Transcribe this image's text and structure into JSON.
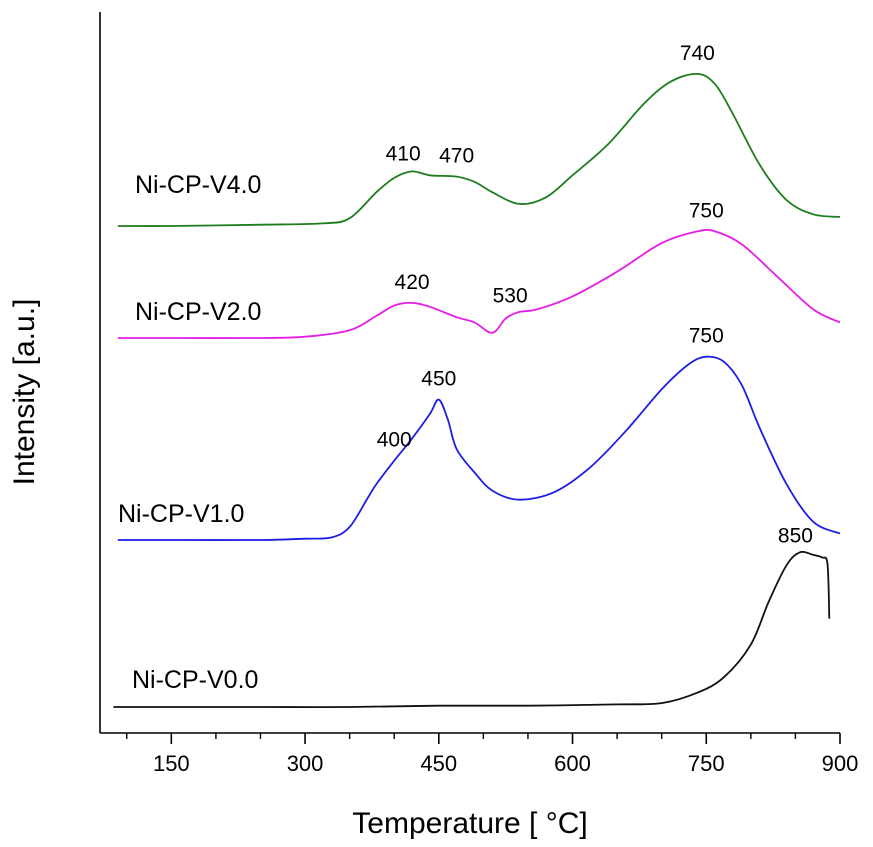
{
  "chart_data": {
    "type": "line",
    "xlabel": "Temperature [ °C]",
    "ylabel": "Intensity [a.u.]",
    "xlim": [
      70,
      900
    ],
    "x_ticks": [
      150,
      300,
      450,
      600,
      750,
      900
    ],
    "x_minor_step": 50,
    "y_ticks": "none",
    "series": [
      {
        "name": "Ni-CP-V4.0",
        "color": "#1e7d1e",
        "x": [
          90,
          150,
          250,
          320,
          350,
          380,
          400,
          420,
          440,
          470,
          490,
          510,
          540,
          570,
          600,
          640,
          680,
          710,
          740,
          760,
          780,
          810,
          840,
          870,
          900
        ],
        "y": [
          0.0,
          0.0,
          0.01,
          0.02,
          0.06,
          0.26,
          0.37,
          0.42,
          0.39,
          0.38,
          0.34,
          0.26,
          0.17,
          0.22,
          0.39,
          0.63,
          0.94,
          1.11,
          1.17,
          1.09,
          0.86,
          0.47,
          0.2,
          0.09,
          0.07
        ],
        "peaks": [
          {
            "x": 410,
            "label": "410"
          },
          {
            "x": 470,
            "label": "470"
          },
          {
            "x": 740,
            "label": "740"
          }
        ]
      },
      {
        "name": "Ni-CP-V2.0",
        "color": "#e51ee5",
        "x": [
          90,
          150,
          250,
          300,
          350,
          380,
          400,
          420,
          440,
          470,
          490,
          510,
          525,
          540,
          560,
          600,
          650,
          700,
          740,
          760,
          790,
          830,
          870,
          900
        ],
        "y": [
          0.0,
          0.0,
          0.0,
          0.01,
          0.06,
          0.17,
          0.25,
          0.27,
          0.24,
          0.16,
          0.12,
          0.04,
          0.15,
          0.2,
          0.22,
          0.32,
          0.51,
          0.73,
          0.82,
          0.82,
          0.72,
          0.47,
          0.22,
          0.12
        ],
        "peaks": [
          {
            "x": 420,
            "label": "420"
          },
          {
            "x": 530,
            "label": "530"
          },
          {
            "x": 750,
            "label": "750"
          }
        ]
      },
      {
        "name": "Ni-CP-V1.0",
        "color": "#1e1ee5",
        "x": [
          90,
          150,
          250,
          300,
          330,
          350,
          370,
          380,
          400,
          420,
          440,
          450,
          460,
          470,
          490,
          510,
          540,
          580,
          620,
          660,
          700,
          730,
          750,
          770,
          790,
          810,
          840,
          870,
          900
        ],
        "y": [
          0.0,
          0.0,
          0.0,
          0.01,
          0.02,
          0.1,
          0.32,
          0.43,
          0.61,
          0.78,
          0.97,
          1.08,
          0.93,
          0.7,
          0.52,
          0.38,
          0.31,
          0.37,
          0.56,
          0.84,
          1.16,
          1.35,
          1.41,
          1.37,
          1.19,
          0.86,
          0.43,
          0.14,
          0.05
        ],
        "peaks": [
          {
            "x": 400,
            "label": "400"
          },
          {
            "x": 450,
            "label": "450"
          },
          {
            "x": 750,
            "label": "750"
          }
        ]
      },
      {
        "name": "Ni-CP-V0.0",
        "color": "#111111",
        "x": [
          85,
          150,
          250,
          350,
          450,
          550,
          650,
          700,
          740,
          770,
          800,
          820,
          840,
          855,
          870,
          880,
          886,
          888
        ],
        "y": [
          0.0,
          0.0,
          0.0,
          0.0,
          0.01,
          0.01,
          0.02,
          0.03,
          0.11,
          0.23,
          0.48,
          0.81,
          1.09,
          1.19,
          1.17,
          1.15,
          1.1,
          0.68
        ],
        "peaks": [
          {
            "x": 850,
            "label": "850"
          }
        ]
      }
    ]
  }
}
